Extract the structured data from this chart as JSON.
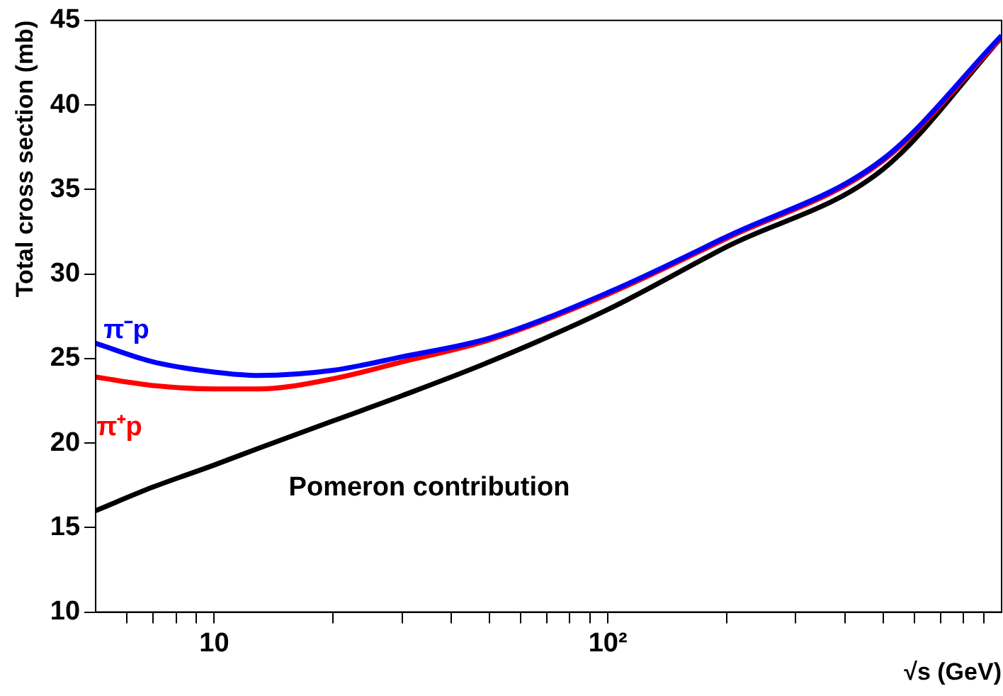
{
  "chart_data": {
    "type": "line",
    "xlabel": "√s (GeV)",
    "ylabel": "Total cross section (mb)",
    "log": "x",
    "grid": false,
    "legend": false,
    "marker": "none",
    "line_style": "solid",
    "xlim": [
      5,
      1000
    ],
    "ylim": [
      10,
      45
    ],
    "xticks": [
      {
        "value": 6,
        "label": null
      },
      {
        "value": 7,
        "label": null
      },
      {
        "value": 8,
        "label": null
      },
      {
        "value": 9,
        "label": null
      },
      {
        "value": 10,
        "label": "10"
      },
      {
        "value": 20,
        "label": null
      },
      {
        "value": 30,
        "label": null
      },
      {
        "value": 40,
        "label": null
      },
      {
        "value": 50,
        "label": null
      },
      {
        "value": 60,
        "label": null
      },
      {
        "value": 70,
        "label": null
      },
      {
        "value": 80,
        "label": null
      },
      {
        "value": 90,
        "label": null
      },
      {
        "value": 100,
        "label": "10²"
      },
      {
        "value": 200,
        "label": null
      },
      {
        "value": 300,
        "label": null
      },
      {
        "value": 400,
        "label": null
      },
      {
        "value": 500,
        "label": null
      },
      {
        "value": 600,
        "label": null
      },
      {
        "value": 700,
        "label": null
      },
      {
        "value": 800,
        "label": null
      },
      {
        "value": 900,
        "label": null
      }
    ],
    "yticks": [
      10,
      15,
      20,
      25,
      30,
      35,
      40,
      45
    ],
    "x": [
      5,
      7,
      10,
      13,
      20,
      30,
      50,
      100,
      200,
      500,
      1000
    ],
    "series": [
      {
        "name": "π⁻p",
        "color": "#0000ff",
        "values": [
          25.9,
          24.8,
          24.2,
          24.0,
          24.3,
          25.1,
          26.2,
          28.9,
          32.2,
          36.8,
          44.1
        ]
      },
      {
        "name": "π⁺p",
        "color": "#ff0000",
        "values": [
          23.9,
          23.4,
          23.2,
          23.2,
          23.8,
          24.8,
          26.1,
          28.8,
          32.1,
          36.7,
          44.0
        ]
      },
      {
        "name": "Pomeron contribution",
        "color": "#000000",
        "values": [
          16.0,
          17.4,
          18.7,
          19.7,
          21.3,
          22.8,
          24.8,
          27.9,
          31.6,
          36.2,
          44.0
        ]
      }
    ]
  }
}
